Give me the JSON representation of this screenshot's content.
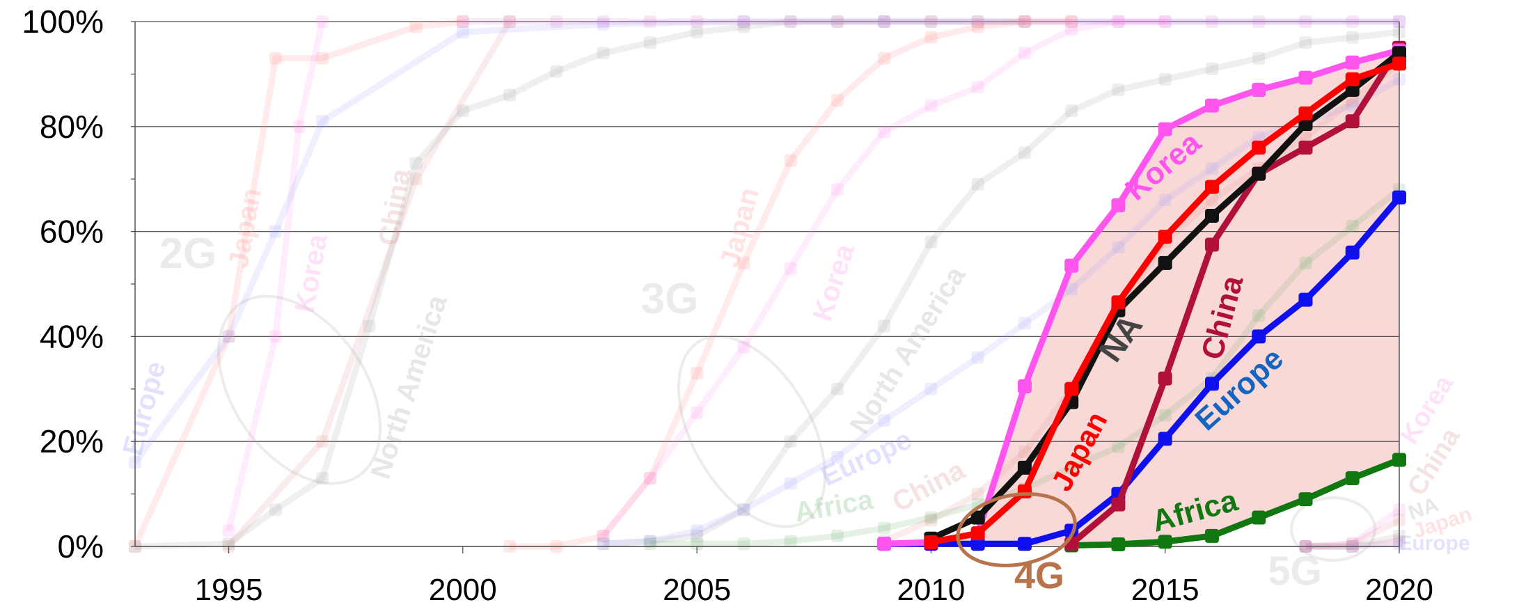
{
  "chart_data": {
    "type": "line",
    "title": "",
    "xlabel": "",
    "ylabel": "",
    "xlim": [
      1993,
      2020
    ],
    "ylim": [
      0,
      100
    ],
    "x_ticks": [
      {
        "value": 1995,
        "label": "1995"
      },
      {
        "value": 2000,
        "label": "2000"
      },
      {
        "value": 2005,
        "label": "2005"
      },
      {
        "value": 2010,
        "label": "2010"
      },
      {
        "value": 2015,
        "label": "2015"
      },
      {
        "value": 2020,
        "label": "2020"
      }
    ],
    "y_ticks": [
      {
        "value": 0,
        "label": "0%"
      },
      {
        "value": 20,
        "label": "20%"
      },
      {
        "value": 40,
        "label": "40%"
      },
      {
        "value": 60,
        "label": "60%"
      },
      {
        "value": 80,
        "label": "80%"
      },
      {
        "value": 100,
        "label": "100%"
      }
    ],
    "grid": "horizontal",
    "legend": "none (series labelled directly on the lines)",
    "generations": [
      "2G",
      "3G",
      "4G",
      "5G"
    ],
    "highlighted_generation": "4G",
    "colors": {
      "Korea": "#ff55ee",
      "Japan": "#ff0000",
      "NA": "#111111",
      "China": "#b0103a",
      "Europe": "#1010ee",
      "Africa": "#117711",
      "band": "#f7d2d0",
      "4G_label": "#b8734a"
    },
    "series": [
      {
        "generation": "4G",
        "name": "Korea",
        "x": [
          2009,
          2010,
          2011,
          2012,
          2013,
          2014,
          2015,
          2016,
          2017,
          2018,
          2019,
          2020
        ],
        "values": [
          0.5,
          0.8,
          2.5,
          30.5,
          53.5,
          65,
          79.5,
          84,
          87,
          89.3,
          92.2,
          94.5
        ]
      },
      {
        "generation": "4G",
        "name": "Japan",
        "x": [
          2010,
          2011,
          2012,
          2013,
          2014,
          2015,
          2016,
          2017,
          2018,
          2019,
          2020
        ],
        "values": [
          0.8,
          2.5,
          10.5,
          30,
          46.5,
          59,
          68.5,
          76,
          82.5,
          89,
          92
        ]
      },
      {
        "generation": "4G",
        "name": "NA",
        "x": [
          2010,
          2011,
          2012,
          2013,
          2014,
          2015,
          2016,
          2017,
          2018,
          2019,
          2020
        ],
        "values": [
          1.5,
          5.5,
          15,
          27.5,
          45,
          54,
          63,
          71,
          80.5,
          87,
          94
        ]
      },
      {
        "generation": "4G",
        "name": "China",
        "x": [
          2013,
          2014,
          2015,
          2016,
          2017,
          2018,
          2019,
          2020
        ],
        "values": [
          0.5,
          8,
          32,
          57.5,
          71,
          76,
          81,
          95
        ]
      },
      {
        "generation": "4G",
        "name": "Europe",
        "x": [
          2009,
          2010,
          2011,
          2012,
          2013,
          2014,
          2015,
          2016,
          2017,
          2018,
          2019,
          2020
        ],
        "values": [
          0.5,
          0.5,
          0.5,
          0.5,
          3,
          10,
          20.5,
          31,
          40,
          47,
          56,
          66.5
        ]
      },
      {
        "generation": "4G",
        "name": "Africa",
        "x": [
          2013,
          2014,
          2015,
          2016,
          2017,
          2018,
          2019,
          2020
        ],
        "values": [
          0.2,
          0.4,
          0.9,
          2,
          5.5,
          9,
          13,
          16.5
        ]
      },
      {
        "generation": "2G",
        "name": "Japan",
        "x": [
          1993,
          1995,
          1996,
          1997,
          1999,
          2000
        ],
        "values": [
          0,
          40,
          93,
          93,
          99,
          100
        ]
      },
      {
        "generation": "2G",
        "name": "Korea",
        "x": [
          1995,
          1996,
          1996.5,
          1997
        ],
        "values": [
          3,
          40,
          80,
          100
        ]
      },
      {
        "generation": "2G",
        "name": "China",
        "x": [
          1995,
          1997,
          1999,
          2001
        ],
        "values": [
          0,
          20,
          70,
          100
        ]
      },
      {
        "generation": "2G",
        "name": "Europe",
        "x": [
          1993,
          1995,
          1996,
          1997,
          2000,
          2003,
          2006,
          2009,
          2020
        ],
        "values": [
          16,
          40,
          60,
          81,
          98,
          99.5,
          100,
          100,
          100
        ]
      },
      {
        "generation": "2G",
        "name": "North America",
        "x": [
          1993,
          1995,
          1996,
          1997,
          1998,
          1999,
          2000,
          2001,
          2002,
          2003,
          2004,
          2005,
          2006,
          2007,
          2008,
          2009,
          2010,
          2011,
          2012
        ],
        "values": [
          0,
          0.5,
          7,
          13,
          42,
          73,
          83,
          86,
          90.5,
          94,
          96,
          98,
          99,
          100,
          100,
          100,
          100,
          100,
          100
        ]
      },
      {
        "generation": "2G",
        "name": "Korea (top)",
        "x": [
          2000,
          2001,
          2002,
          2003,
          2004,
          2005,
          2006,
          2007,
          2008,
          2009,
          2010,
          2011,
          2012,
          2013,
          2014,
          2015,
          2016,
          2017,
          2018,
          2019,
          2020
        ],
        "values": [
          100,
          100,
          100,
          100,
          100,
          100,
          100,
          100,
          100,
          100,
          100,
          100,
          100,
          100,
          100,
          100,
          100,
          100,
          100,
          100,
          100
        ]
      },
      {
        "generation": "3G",
        "name": "Japan",
        "x": [
          2001,
          2002,
          2003,
          2004,
          2005,
          2006,
          2007,
          2008,
          2009,
          2010,
          2011,
          2012,
          2013
        ],
        "values": [
          0,
          0,
          2,
          13,
          33,
          54,
          73.5,
          85,
          93,
          97,
          99,
          100,
          100
        ]
      },
      {
        "generation": "3G",
        "name": "Korea",
        "x": [
          2003,
          2004,
          2005,
          2006,
          2007,
          2008,
          2009,
          2010,
          2011,
          2012,
          2013,
          2014,
          2015
        ],
        "values": [
          2,
          13,
          25.5,
          38,
          53,
          68,
          79,
          84,
          87.5,
          94,
          98.5,
          100,
          100
        ]
      },
      {
        "generation": "3G",
        "name": "North America",
        "x": [
          2003,
          2004,
          2005,
          2006,
          2007,
          2008,
          2009,
          2010,
          2011,
          2012,
          2013,
          2014,
          2015,
          2016,
          2017,
          2018,
          2019,
          2020
        ],
        "values": [
          0.5,
          1,
          2,
          7,
          20,
          30,
          42,
          58,
          69,
          75,
          83,
          87,
          89,
          91,
          93,
          96,
          97,
          98
        ]
      },
      {
        "generation": "3G",
        "name": "Europe",
        "x": [
          2003,
          2004,
          2005,
          2006,
          2007,
          2008,
          2009,
          2010,
          2011,
          2012,
          2013,
          2014,
          2015,
          2016,
          2017,
          2018,
          2019,
          2020
        ],
        "values": [
          0.5,
          1,
          3,
          7,
          12,
          17,
          24,
          30,
          36,
          42.5,
          49,
          57,
          66,
          72,
          78,
          81,
          84,
          89
        ]
      },
      {
        "generation": "3G",
        "name": "China",
        "x": [
          2009,
          2010,
          2011,
          2012,
          2013,
          2014,
          2015,
          2016,
          2017,
          2018,
          2019,
          2020
        ],
        "values": [
          1,
          5,
          10,
          18,
          30,
          45,
          58,
          66,
          72,
          78,
          85,
          92
        ]
      },
      {
        "generation": "3G",
        "name": "Africa",
        "x": [
          2004,
          2005,
          2006,
          2007,
          2008,
          2009,
          2010,
          2011,
          2012,
          2013,
          2014,
          2015,
          2016,
          2017,
          2018,
          2019,
          2020
        ],
        "values": [
          0.5,
          0.5,
          0.5,
          1,
          2,
          3.5,
          5.5,
          8,
          11,
          15,
          19,
          25,
          32,
          44,
          54,
          61,
          68
        ]
      },
      {
        "generation": "5G",
        "name": "Korea",
        "x": [
          2018,
          2019,
          2020
        ],
        "values": [
          0,
          0.5,
          7
        ]
      },
      {
        "generation": "5G",
        "name": "China",
        "x": [
          2018,
          2019,
          2020
        ],
        "values": [
          0,
          0.5,
          5
        ]
      },
      {
        "generation": "5G",
        "name": "NA",
        "x": [
          2018,
          2019,
          2020
        ],
        "values": [
          0,
          0,
          2
        ]
      },
      {
        "generation": "5G",
        "name": "Japan",
        "x": [
          2018,
          2019,
          2020
        ],
        "values": [
          0,
          0,
          1
        ]
      },
      {
        "generation": "5G",
        "name": "Europe",
        "x": [
          2018,
          2019,
          2020
        ],
        "values": [
          0,
          0,
          0.5
        ]
      }
    ],
    "labels": [
      {
        "generation": "2G",
        "text": "2G"
      },
      {
        "generation": "2G",
        "text": "Japan"
      },
      {
        "generation": "2G",
        "text": "Korea"
      },
      {
        "generation": "2G",
        "text": "China"
      },
      {
        "generation": "2G",
        "text": "Europe"
      },
      {
        "generation": "2G",
        "text": "North America"
      },
      {
        "generation": "3G",
        "text": "3G"
      },
      {
        "generation": "3G",
        "text": "Japan"
      },
      {
        "generation": "3G",
        "text": "Korea"
      },
      {
        "generation": "3G",
        "text": "North America"
      },
      {
        "generation": "3G",
        "text": "Europe"
      },
      {
        "generation": "3G",
        "text": "Africa"
      },
      {
        "generation": "3G",
        "text": "China"
      },
      {
        "generation": "4G",
        "text": "4G"
      },
      {
        "generation": "4G",
        "text": "Korea"
      },
      {
        "generation": "4G",
        "text": "NA"
      },
      {
        "generation": "4G",
        "text": "Japan"
      },
      {
        "generation": "4G",
        "text": "China"
      },
      {
        "generation": "4G",
        "text": "Europe"
      },
      {
        "generation": "4G",
        "text": "Africa"
      },
      {
        "generation": "5G",
        "text": "5G"
      },
      {
        "generation": "5G",
        "text": "Korea"
      },
      {
        "generation": "5G",
        "text": "China"
      },
      {
        "generation": "5G",
        "text": "NA"
      },
      {
        "generation": "5G",
        "text": "Japan"
      },
      {
        "generation": "5G",
        "text": "Europe"
      }
    ]
  }
}
